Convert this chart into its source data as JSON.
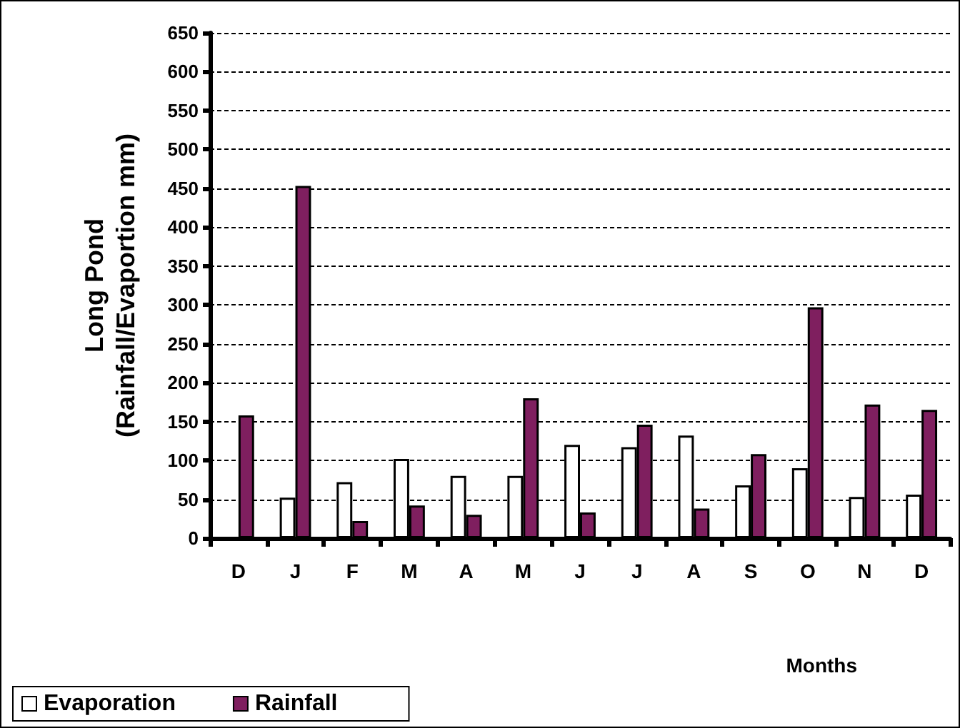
{
  "chart_data": {
    "type": "bar",
    "xlabel": "Months",
    "ylabel": "Long Pond\n(Rainfall/Evaportion mm)",
    "categories": [
      "D",
      "J",
      "F",
      "M",
      "A",
      "M",
      "J",
      "J",
      "A",
      "S",
      "O",
      "N",
      "D"
    ],
    "series": [
      {
        "name": "Evaporation",
        "color": "#ffffff",
        "values": [
          null,
          52,
          72,
          102,
          80,
          80,
          120,
          117,
          132,
          68,
          90,
          53,
          56
        ]
      },
      {
        "name": "Rainfall",
        "color": "#7f1f5f",
        "values": [
          158,
          453,
          22,
          42,
          30,
          180,
          33,
          146,
          38,
          108,
          297,
          172,
          165
        ]
      }
    ],
    "ylim": [
      0,
      650
    ],
    "yticks": [
      0,
      50,
      100,
      150,
      200,
      250,
      300,
      350,
      400,
      450,
      500,
      550,
      600,
      650
    ],
    "grid": "y",
    "legend": "bottom left"
  }
}
